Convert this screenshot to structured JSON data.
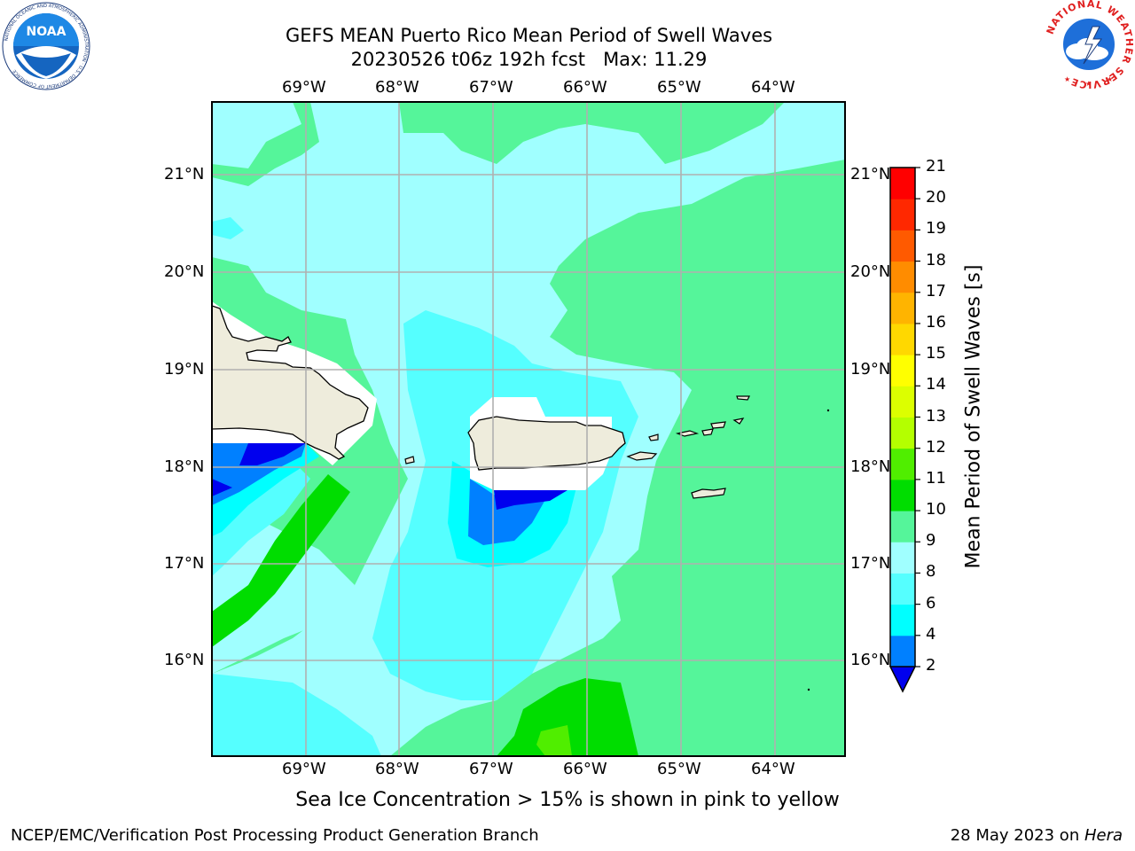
{
  "header": {
    "title_line1": "GEFS MEAN Puerto Rico Mean Period of Swell Waves",
    "title_line2": "20230526 t06z 192h fcst   Max: 11.29"
  },
  "logos": {
    "noaa": {
      "icon": "noaa-logo-icon",
      "text": "NOAA",
      "ring_text": "NATIONAL OCEANIC AND ATMOSPHERIC ADMINISTRATION · U.S. DEPARTMENT OF COMMERCE"
    },
    "nws": {
      "icon": "nws-logo-icon",
      "ring_text": "NATIONAL WEATHER SERVICE"
    }
  },
  "map": {
    "lon_labels": [
      "69°W",
      "68°W",
      "67°W",
      "66°W",
      "65°W",
      "64°W"
    ],
    "lat_labels": [
      "21°N",
      "20°N",
      "19°N",
      "18°N",
      "17°N",
      "16°N"
    ],
    "land_color": "#eeecdc",
    "grid_color": "#b0b0b0"
  },
  "colorbar": {
    "label": "Mean Period of Swell Waves [s]",
    "ticks": [
      "2",
      "4",
      "6",
      "8",
      "9",
      "10",
      "11",
      "12",
      "13",
      "14",
      "15",
      "16",
      "17",
      "18",
      "19",
      "20",
      "21"
    ],
    "colors": [
      "#0000ee",
      "#0080ff",
      "#00ffff",
      "#55ffff",
      "#a0ffff",
      "#55f59a",
      "#00dd00",
      "#50ee00",
      "#b4ff00",
      "#dcff00",
      "#ffff00",
      "#ffd800",
      "#ffb400",
      "#ff8c00",
      "#ff5a00",
      "#ff2800",
      "#ff0000"
    ]
  },
  "caption": "Sea Ice Concentration > 15% is shown in pink to yellow",
  "footer": {
    "left": "NCEP/EMC/Verification Post Processing Product Generation Branch",
    "right_prefix": "28 May 2023 on ",
    "right_machine": "Hera"
  }
}
